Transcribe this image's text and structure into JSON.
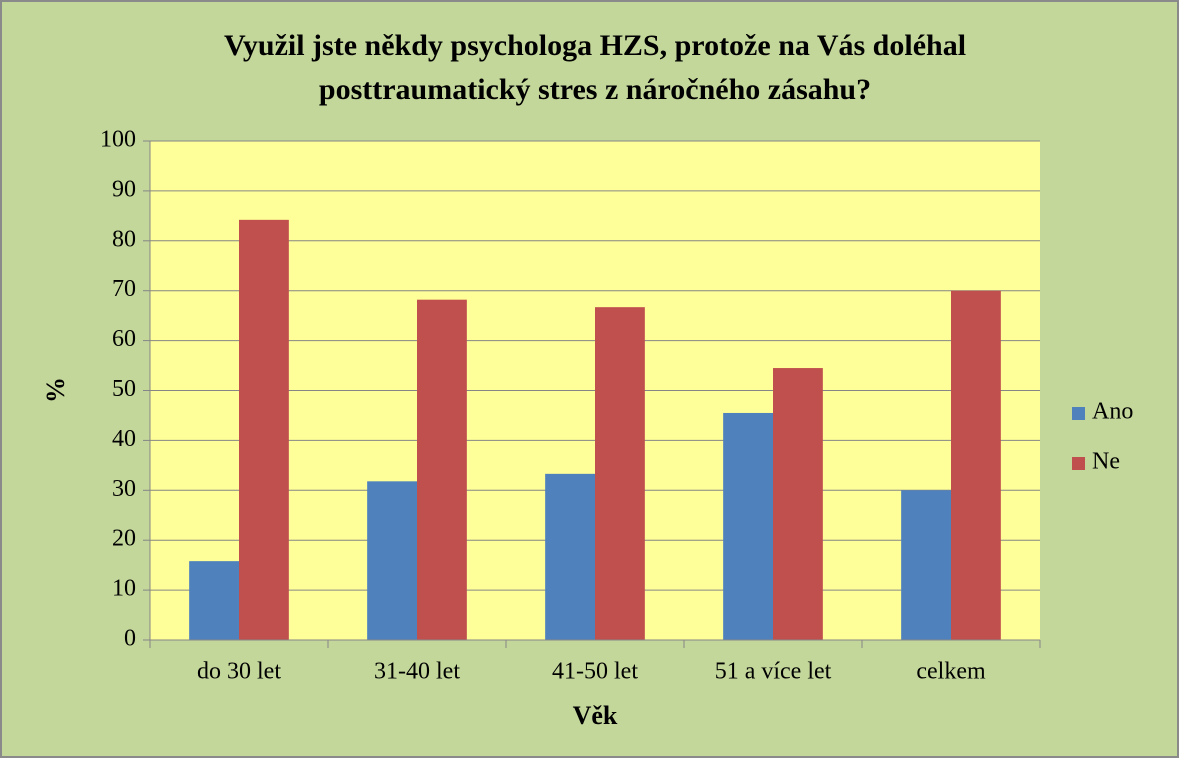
{
  "chart_data": {
    "type": "bar",
    "title": "Využil jste někdy psychologa HZS, protože na Vás doléhal\nposttraumatický stres z náročného zásahu?",
    "xlabel": "Věk",
    "ylabel": "%",
    "categories": [
      "do 30 let",
      "31-40 let",
      "41-50 let",
      "51 a více let",
      "celkem"
    ],
    "series": [
      {
        "name": "Ano",
        "color": "#4f81bd",
        "values": [
          15.8,
          31.8,
          33.3,
          45.5,
          30
        ]
      },
      {
        "name": "Ne",
        "color": "#c0504d",
        "values": [
          84.2,
          68.2,
          66.7,
          54.5,
          70
        ]
      }
    ],
    "ylim": [
      0,
      100
    ],
    "yticks": [
      0,
      10,
      20,
      30,
      40,
      50,
      60,
      70,
      80,
      90,
      100
    ],
    "grid": true,
    "legend": "right"
  }
}
